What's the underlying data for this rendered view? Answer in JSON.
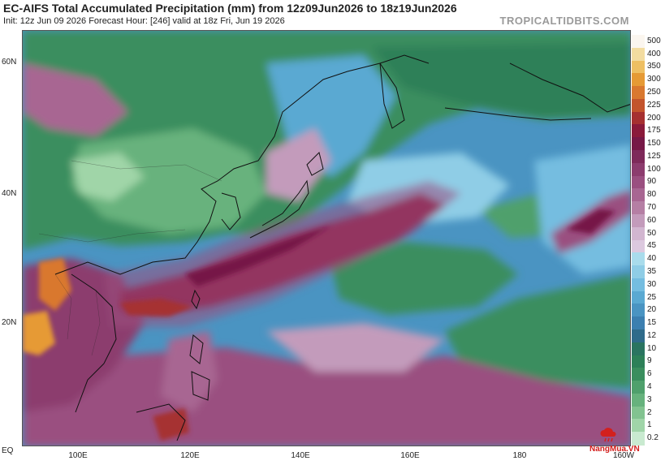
{
  "header": {
    "title": "EC-AIFS Total Accumulated Precipitation (mm) from 12z09Jun2026 to 18z19Jun2026",
    "subtitle": "Init: 12z Jun 09 2026   Forecast Hour: [246]   valid at 18z Fri, Jun 19 2026",
    "brand": "TROPICALTIDBITS.COM"
  },
  "lat_labels": [
    "60N",
    "40N",
    "20N",
    "EQ"
  ],
  "lon_labels": [
    "100E",
    "120E",
    "140E",
    "160E",
    "180",
    "160W"
  ],
  "colorbar": {
    "levels": [
      "500",
      "400",
      "350",
      "300",
      "250",
      "225",
      "200",
      "175",
      "150",
      "125",
      "100",
      "90",
      "80",
      "70",
      "60",
      "50",
      "45",
      "40",
      "35",
      "30",
      "25",
      "20",
      "15",
      "12",
      "10",
      "9",
      "6",
      "4",
      "3",
      "2",
      "1",
      "0.2"
    ],
    "colors": [
      "#fbf6ef",
      "#f3dca0",
      "#eebf63",
      "#e69a35",
      "#d9782f",
      "#c3542c",
      "#a63030",
      "#8a1a3a",
      "#761846",
      "#7e2a5a",
      "#8c3c6e",
      "#9a4f80",
      "#a86692",
      "#b57fa4",
      "#c39bbb",
      "#d2b6d0",
      "#dcc9df",
      "#a9dcec",
      "#8fcde6",
      "#74bde0",
      "#5aa9d2",
      "#4a94c2",
      "#3c7fb0",
      "#2f6b8a",
      "#2a7460",
      "#2d8058",
      "#3a8e5e",
      "#4fa06c",
      "#67b27d",
      "#82c390",
      "#a0d5a8",
      "#c9ead0"
    ]
  },
  "watermark": {
    "text": "NangMua.VN",
    "logo_icon": "cloud-rain-logo-icon"
  }
}
